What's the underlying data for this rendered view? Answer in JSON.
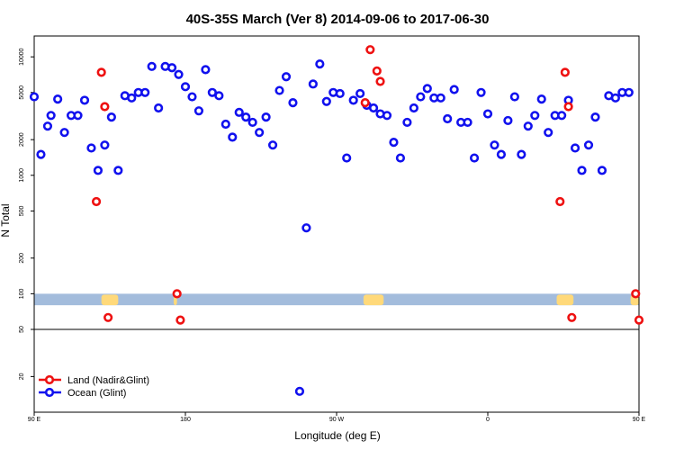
{
  "chart_data": {
    "type": "scatter",
    "title": "40S-35S March (Ver 8)   2014-09-06 to 2017-06-30",
    "xlabel": "Longitude (deg E)",
    "ylabel": "N Total",
    "x_scale": "linear",
    "y_scale": "log",
    "xlim": [
      90,
      450
    ],
    "ylim": [
      10,
      15000
    ],
    "x_ticks": [
      {
        "value": 90,
        "label": "90 E"
      },
      {
        "value": 180,
        "label": "180"
      },
      {
        "value": 270,
        "label": "90 W"
      },
      {
        "value": 360,
        "label": "0"
      },
      {
        "value": 450,
        "label": "90 E"
      },
      {
        "value": 540,
        "label": "180"
      }
    ],
    "y_ticks": [
      {
        "value": 20,
        "label": "20"
      },
      {
        "value": 50,
        "label": "50"
      },
      {
        "value": 100,
        "label": "100"
      },
      {
        "value": 200,
        "label": "200"
      },
      {
        "value": 500,
        "label": "500"
      },
      {
        "value": 1000,
        "label": "1000"
      },
      {
        "value": 2000,
        "label": "2000"
      },
      {
        "value": 5000,
        "label": "5000"
      },
      {
        "value": 10000,
        "label": "10000"
      }
    ],
    "x_ticks_display_max": 540,
    "reference_line_y": 50,
    "land_band": {
      "y_range": [
        80,
        100
      ],
      "color": "#a3bcdc"
    },
    "land_patches": [
      {
        "x_range": [
          130,
          140
        ],
        "color": "#ffd97a"
      },
      {
        "x_range": [
          173,
          175
        ],
        "color": "#ffd97a"
      },
      {
        "x_range": [
          286,
          298
        ],
        "color": "#ffd97a"
      },
      {
        "x_range": [
          401,
          411
        ],
        "color": "#ffd97a"
      },
      {
        "x_range": [
          445,
          450
        ],
        "color": "#ffd97a"
      }
    ],
    "legend": {
      "placement": "bottom-left"
    },
    "series": [
      {
        "name": "Land (Nadir&Glint)",
        "color": "#ee1111",
        "points": [
          [
            127,
            600
          ],
          [
            130,
            7400
          ],
          [
            132,
            3800
          ],
          [
            134,
            63
          ],
          [
            175,
            100
          ],
          [
            177,
            60
          ],
          [
            287,
            4100
          ],
          [
            290,
            11500
          ],
          [
            294,
            7600
          ],
          [
            296,
            6200
          ],
          [
            403,
            600
          ],
          [
            406,
            7400
          ],
          [
            408,
            3800
          ],
          [
            410,
            63
          ],
          [
            448,
            100
          ],
          [
            450,
            60
          ]
        ]
      },
      {
        "name": "Ocean (Glint)",
        "color": "#1111ee",
        "points": [
          [
            90,
            4600
          ],
          [
            94,
            1500
          ],
          [
            98,
            2600
          ],
          [
            100,
            3200
          ],
          [
            104,
            4400
          ],
          [
            108,
            2300
          ],
          [
            112,
            3200
          ],
          [
            116,
            3200
          ],
          [
            120,
            4300
          ],
          [
            124,
            1700
          ],
          [
            128,
            1100
          ],
          [
            132,
            1800
          ],
          [
            136,
            3100
          ],
          [
            140,
            1100
          ],
          [
            144,
            4700
          ],
          [
            148,
            4500
          ],
          [
            152,
            5000
          ],
          [
            156,
            5000
          ],
          [
            160,
            8300
          ],
          [
            164,
            3700
          ],
          [
            168,
            8300
          ],
          [
            172,
            8100
          ],
          [
            176,
            7100
          ],
          [
            180,
            5600
          ],
          [
            184,
            4600
          ],
          [
            188,
            3500
          ],
          [
            192,
            7800
          ],
          [
            196,
            5000
          ],
          [
            200,
            4700
          ],
          [
            204,
            2700
          ],
          [
            208,
            2100
          ],
          [
            212,
            3400
          ],
          [
            216,
            3100
          ],
          [
            220,
            2800
          ],
          [
            224,
            2300
          ],
          [
            228,
            3100
          ],
          [
            232,
            1800
          ],
          [
            236,
            5200
          ],
          [
            240,
            6800
          ],
          [
            244,
            4100
          ],
          [
            248,
            15
          ],
          [
            252,
            360
          ],
          [
            256,
            5900
          ],
          [
            260,
            8700
          ],
          [
            264,
            4200
          ],
          [
            268,
            5000
          ],
          [
            272,
            4900
          ],
          [
            276,
            1400
          ],
          [
            280,
            4300
          ],
          [
            284,
            4900
          ],
          [
            288,
            3900
          ],
          [
            292,
            3700
          ],
          [
            296,
            3300
          ],
          [
            300,
            3200
          ],
          [
            304,
            1900
          ],
          [
            308,
            1400
          ],
          [
            312,
            2800
          ],
          [
            316,
            3700
          ],
          [
            320,
            4600
          ],
          [
            324,
            5400
          ],
          [
            328,
            4500
          ],
          [
            332,
            4500
          ],
          [
            336,
            3000
          ],
          [
            340,
            5300
          ],
          [
            344,
            2800
          ],
          [
            348,
            2800
          ],
          [
            352,
            1400
          ],
          [
            356,
            5000
          ],
          [
            360,
            3300
          ],
          [
            364,
            1800
          ],
          [
            368,
            1500
          ],
          [
            372,
            2900
          ],
          [
            376,
            4600
          ],
          [
            380,
            1500
          ],
          [
            384,
            2600
          ],
          [
            388,
            3200
          ],
          [
            392,
            4400
          ],
          [
            396,
            2300
          ],
          [
            400,
            3200
          ],
          [
            404,
            3200
          ],
          [
            408,
            4300
          ],
          [
            412,
            1700
          ],
          [
            416,
            1100
          ],
          [
            420,
            1800
          ],
          [
            424,
            3100
          ],
          [
            428,
            1100
          ],
          [
            432,
            4700
          ],
          [
            436,
            4500
          ],
          [
            440,
            5000
          ],
          [
            444,
            5000
          ]
        ]
      }
    ]
  }
}
